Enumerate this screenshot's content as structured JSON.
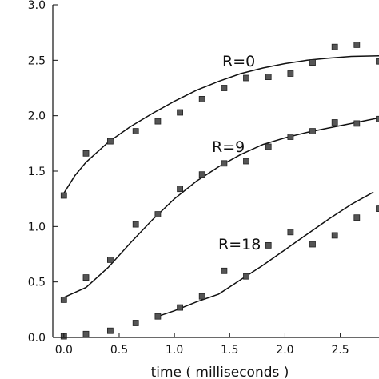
{
  "chart_data": {
    "type": "scatter",
    "xlabel": "time ( milliseconds )",
    "ylabel": "",
    "xlim": [
      -0.1,
      2.85
    ],
    "ylim": [
      0.0,
      3.0
    ],
    "x_ticks": [
      "0.0",
      "0.5",
      "1.0",
      "1.5",
      "2.0",
      "2.5"
    ],
    "y_ticks": [
      "0.0",
      "0.5",
      "1.0",
      "1.5",
      "2.0",
      "2.5",
      "3.0"
    ],
    "grid": false,
    "colors": {
      "marker": "#555555",
      "line": "#111111",
      "axis": "#111111"
    },
    "series": [
      {
        "name": "R=0",
        "points": [
          [
            0.0,
            1.28
          ],
          [
            0.2,
            1.66
          ],
          [
            0.42,
            1.77
          ],
          [
            0.65,
            1.86
          ],
          [
            0.85,
            1.95
          ],
          [
            1.05,
            2.03
          ],
          [
            1.25,
            2.15
          ],
          [
            1.45,
            2.25
          ],
          [
            1.65,
            2.34
          ],
          [
            1.85,
            2.35
          ],
          [
            2.05,
            2.38
          ],
          [
            2.25,
            2.48
          ],
          [
            2.45,
            2.62
          ],
          [
            2.65,
            2.64
          ],
          [
            2.85,
            2.49
          ]
        ],
        "fit": [
          [
            0.0,
            1.3
          ],
          [
            0.1,
            1.46
          ],
          [
            0.2,
            1.58
          ],
          [
            0.4,
            1.76
          ],
          [
            0.6,
            1.9
          ],
          [
            0.8,
            2.02
          ],
          [
            1.0,
            2.13
          ],
          [
            1.2,
            2.23
          ],
          [
            1.4,
            2.31
          ],
          [
            1.6,
            2.38
          ],
          [
            1.8,
            2.43
          ],
          [
            2.0,
            2.47
          ],
          [
            2.2,
            2.5
          ],
          [
            2.4,
            2.52
          ],
          [
            2.6,
            2.535
          ],
          [
            2.85,
            2.54
          ]
        ]
      },
      {
        "name": "R=9",
        "points": [
          [
            0.0,
            0.34
          ],
          [
            0.2,
            0.54
          ],
          [
            0.42,
            0.7
          ],
          [
            0.65,
            1.02
          ],
          [
            0.85,
            1.11
          ],
          [
            1.05,
            1.34
          ],
          [
            1.25,
            1.47
          ],
          [
            1.45,
            1.57
          ],
          [
            1.65,
            1.59
          ],
          [
            1.85,
            1.72
          ],
          [
            2.05,
            1.81
          ],
          [
            2.25,
            1.86
          ],
          [
            2.45,
            1.94
          ],
          [
            2.65,
            1.93
          ],
          [
            2.85,
            1.97
          ]
        ],
        "fit": [
          [
            0.0,
            0.36
          ],
          [
            0.2,
            0.45
          ],
          [
            0.4,
            0.63
          ],
          [
            0.6,
            0.85
          ],
          [
            0.8,
            1.06
          ],
          [
            1.0,
            1.25
          ],
          [
            1.2,
            1.41
          ],
          [
            1.4,
            1.54
          ],
          [
            1.6,
            1.65
          ],
          [
            1.8,
            1.74
          ],
          [
            2.0,
            1.8
          ],
          [
            2.2,
            1.85
          ],
          [
            2.4,
            1.89
          ],
          [
            2.6,
            1.93
          ],
          [
            2.85,
            1.98
          ]
        ]
      },
      {
        "name": "R=18",
        "points": [
          [
            0.0,
            0.01
          ],
          [
            0.2,
            0.03
          ],
          [
            0.42,
            0.06
          ],
          [
            0.65,
            0.13
          ],
          [
            0.85,
            0.19
          ],
          [
            1.05,
            0.27
          ],
          [
            1.25,
            0.37
          ],
          [
            1.45,
            0.6
          ],
          [
            1.65,
            0.55
          ],
          [
            1.85,
            0.83
          ],
          [
            2.05,
            0.95
          ],
          [
            2.25,
            0.84
          ],
          [
            2.45,
            0.92
          ],
          [
            2.65,
            1.08
          ],
          [
            2.85,
            1.16
          ]
        ],
        "fit": [
          [
            0.85,
            0.19
          ],
          [
            1.0,
            0.24
          ],
          [
            1.2,
            0.32
          ],
          [
            1.4,
            0.39
          ],
          [
            1.6,
            0.52
          ],
          [
            1.8,
            0.65
          ],
          [
            2.0,
            0.79
          ],
          [
            2.2,
            0.93
          ],
          [
            2.4,
            1.07
          ],
          [
            2.6,
            1.2
          ],
          [
            2.8,
            1.31
          ]
        ]
      }
    ]
  }
}
